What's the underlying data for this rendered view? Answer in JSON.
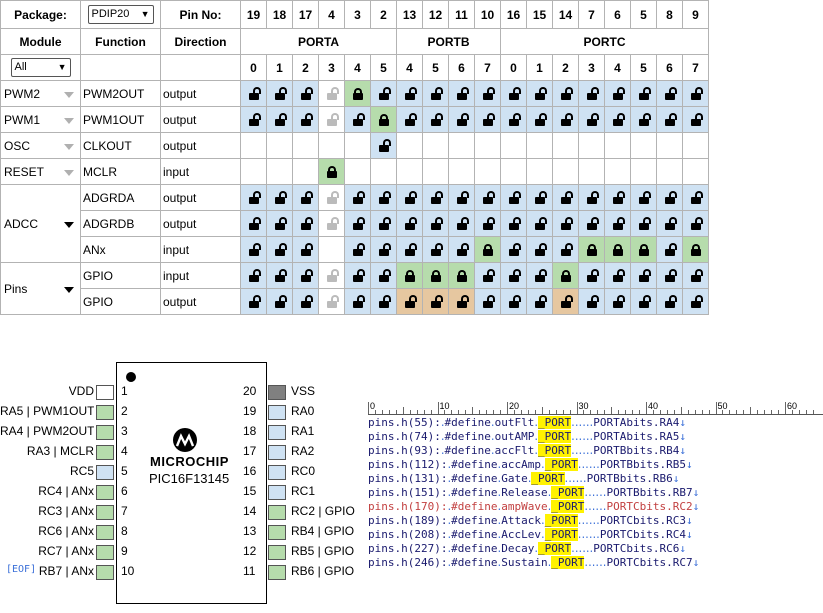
{
  "header": {
    "package_label": "Package:",
    "package_value": "PDIP20",
    "pin_no_label": "Pin No:",
    "pin_numbers": [
      "19",
      "18",
      "17",
      "4",
      "3",
      "2",
      "13",
      "12",
      "11",
      "10",
      "16",
      "15",
      "14",
      "7",
      "6",
      "5",
      "8",
      "9"
    ],
    "module_label": "Module",
    "function_label": "Function",
    "direction_label": "Direction",
    "ports": [
      "PORTA",
      "PORTB",
      "PORTC"
    ],
    "bits": [
      "0",
      "1",
      "2",
      "3",
      "4",
      "5",
      "4",
      "5",
      "6",
      "7",
      "0",
      "1",
      "2",
      "3",
      "4",
      "5",
      "6",
      "7"
    ],
    "module_filter": "All"
  },
  "rows": [
    {
      "module": "PWM2",
      "function": "PWM2OUT",
      "direction": "output",
      "cells": [
        "bo",
        "bo",
        "bo",
        "wf",
        "gc",
        "bo",
        "bo",
        "bo",
        "bo",
        "bo",
        "bo",
        "bo",
        "bo",
        "bo",
        "bo",
        "bo",
        "bo",
        "bo"
      ]
    },
    {
      "module": "PWM1",
      "function": "PWM1OUT",
      "direction": "output",
      "cells": [
        "bo",
        "bo",
        "bo",
        "wf",
        "bo",
        "gc",
        "bo",
        "bo",
        "bo",
        "bo",
        "bo",
        "bo",
        "bo",
        "bo",
        "bo",
        "bo",
        "bo",
        "bo"
      ]
    },
    {
      "module": "OSC",
      "function": "CLKOUT",
      "direction": "output",
      "cells": [
        "w",
        "w",
        "w",
        "w",
        "w",
        "bo",
        "w",
        "w",
        "w",
        "w",
        "w",
        "w",
        "w",
        "w",
        "w",
        "w",
        "w",
        "w"
      ]
    },
    {
      "module": "RESET",
      "function": "MCLR",
      "direction": "input",
      "cells": [
        "w",
        "w",
        "w",
        "gc",
        "w",
        "w",
        "w",
        "w",
        "w",
        "w",
        "w",
        "w",
        "w",
        "w",
        "w",
        "w",
        "w",
        "w"
      ]
    },
    {
      "module": "ADCC",
      "function": "ADGRDA",
      "direction": "output",
      "cells": [
        "bo",
        "bo",
        "bo",
        "wf",
        "bo",
        "bo",
        "bo",
        "bo",
        "bo",
        "bo",
        "bo",
        "bo",
        "bo",
        "bo",
        "bo",
        "bo",
        "bo",
        "bo"
      ]
    },
    {
      "module": "",
      "function": "ADGRDB",
      "direction": "output",
      "cells": [
        "bo",
        "bo",
        "bo",
        "wf",
        "bo",
        "bo",
        "bo",
        "bo",
        "bo",
        "bo",
        "bo",
        "bo",
        "bo",
        "bo",
        "bo",
        "bo",
        "bo",
        "bo"
      ]
    },
    {
      "module": "",
      "function": "ANx",
      "direction": "input",
      "cells": [
        "bo",
        "bo",
        "bo",
        "w",
        "bo",
        "bo",
        "bo",
        "bo",
        "bo",
        "gc",
        "bo",
        "bo",
        "bo",
        "gc",
        "gc",
        "gc",
        "bo",
        "gc"
      ]
    },
    {
      "module": "Pins",
      "function": "GPIO",
      "direction": "input",
      "cells": [
        "bo",
        "bo",
        "bo",
        "wf",
        "bo",
        "bo",
        "gc",
        "gc",
        "gc",
        "bo",
        "bo",
        "bo",
        "gc",
        "bo",
        "bo",
        "bo",
        "bo",
        "bo"
      ]
    },
    {
      "module": "",
      "function": "GPIO",
      "direction": "output",
      "cells": [
        "bo",
        "bo",
        "bo",
        "wf",
        "bo",
        "bo",
        "to",
        "to",
        "to",
        "bo",
        "bo",
        "bo",
        "to",
        "bo",
        "bo",
        "bo",
        "bo",
        "bo"
      ]
    }
  ],
  "chip": {
    "brand": "MICROCHIP",
    "part": "PIC16F13145",
    "left_pins": [
      {
        "num": "1",
        "label": "VDD",
        "color": "white"
      },
      {
        "num": "2",
        "label": "RA5 | PWM1OUT",
        "color": "green"
      },
      {
        "num": "3",
        "label": "RA4 | PWM2OUT",
        "color": "green"
      },
      {
        "num": "4",
        "label": "RA3 | MCLR",
        "color": "green"
      },
      {
        "num": "5",
        "label": "RC5",
        "color": "blue"
      },
      {
        "num": "6",
        "label": "RC4 | ANx",
        "color": "green"
      },
      {
        "num": "7",
        "label": "RC3 | ANx",
        "color": "green"
      },
      {
        "num": "8",
        "label": "RC6 | ANx",
        "color": "green"
      },
      {
        "num": "9",
        "label": "RC7 | ANx",
        "color": "green"
      },
      {
        "num": "10",
        "label": "RB7 | ANx",
        "color": "green"
      }
    ],
    "right_pins": [
      {
        "num": "20",
        "label": "VSS",
        "color": "gray"
      },
      {
        "num": "19",
        "label": "RA0",
        "color": "blue"
      },
      {
        "num": "18",
        "label": "RA1",
        "color": "blue"
      },
      {
        "num": "17",
        "label": "RA2",
        "color": "blue"
      },
      {
        "num": "16",
        "label": "RC0",
        "color": "blue"
      },
      {
        "num": "15",
        "label": "RC1",
        "color": "blue"
      },
      {
        "num": "14",
        "label": "RC2 | GPIO",
        "color": "green"
      },
      {
        "num": "13",
        "label": "RB4 | GPIO",
        "color": "green"
      },
      {
        "num": "12",
        "label": "RB5 | GPIO",
        "color": "green"
      },
      {
        "num": "11",
        "label": "RB6 | GPIO",
        "color": "green"
      }
    ]
  },
  "editor": {
    "ruler_marks": [
      "0",
      "10",
      "20",
      "30",
      "40",
      "50",
      "60"
    ],
    "lines": [
      {
        "pre": "pins.h(55):",
        "def": "#define",
        "name": "outFlt",
        "port": "_PORT",
        "reg": "PORTAbits.RA4",
        "hi": false
      },
      {
        "pre": "pins.h(74):",
        "def": "#define",
        "name": "outAMP",
        "port": "_PORT",
        "reg": "PORTAbits.RA5",
        "hi": false
      },
      {
        "pre": "pins.h(93):",
        "def": "#define",
        "name": "accFlt",
        "port": "_PORT",
        "reg": "PORTBbits.RB4",
        "hi": false
      },
      {
        "pre": "pins.h(112):",
        "def": "#define",
        "name": "accAmp",
        "port": "_PORT",
        "reg": "PORTBbits.RB5",
        "hi": false
      },
      {
        "pre": "pins.h(131):",
        "def": "#define",
        "name": "Gate",
        "port": "_PORT",
        "reg": "PORTBbits.RB6",
        "hi": false
      },
      {
        "pre": "pins.h(151):",
        "def": "#define",
        "name": "Release",
        "port": "_PORT",
        "reg": "PORTBbits.RB7",
        "hi": false
      },
      {
        "pre": "pins.h(170):",
        "def": "#define",
        "name": "ampWave",
        "port": "_PORT",
        "reg": "PORTCbits.RC2",
        "hi": true
      },
      {
        "pre": "pins.h(189):",
        "def": "#define",
        "name": "Attack",
        "port": "_PORT",
        "reg": "PORTCbits.RC3",
        "hi": false
      },
      {
        "pre": "pins.h(208):",
        "def": "#define",
        "name": "AccLev",
        "port": "_PORT",
        "reg": "PORTCbits.RC4",
        "hi": false
      },
      {
        "pre": "pins.h(227):",
        "def": "#define",
        "name": "Decay",
        "port": "_PORT",
        "reg": "PORTCbits.RC6",
        "hi": false
      },
      {
        "pre": "pins.h(246):",
        "def": "#define",
        "name": "Sustain",
        "port": "_PORT",
        "reg": "PORTCbits.RC7",
        "hi": false
      }
    ],
    "eof": "[EOF]"
  }
}
